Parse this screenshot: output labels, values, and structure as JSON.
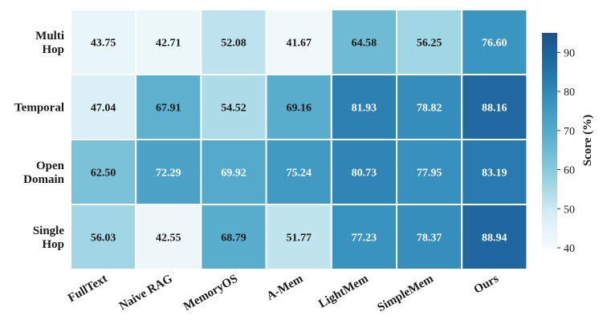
{
  "chart_data": {
    "type": "heatmap",
    "rows": [
      [
        "Multi",
        "Hop"
      ],
      [
        "Temporal"
      ],
      [
        "Open",
        "Domain"
      ],
      [
        "Single",
        "Hop"
      ]
    ],
    "columns": [
      "FullText",
      "Naive RAG",
      "MemoryOS",
      "A-Mem",
      "LightMem",
      "SimpleMem",
      "Ours"
    ],
    "values": [
      [
        43.75,
        42.71,
        52.08,
        41.67,
        64.58,
        56.25,
        76.6
      ],
      [
        47.04,
        67.91,
        54.52,
        69.16,
        81.93,
        78.82,
        88.16
      ],
      [
        62.5,
        72.29,
        69.92,
        75.24,
        80.73,
        77.95,
        83.19
      ],
      [
        56.03,
        42.55,
        68.79,
        51.77,
        77.23,
        78.37,
        88.94
      ]
    ],
    "value_labels": [
      [
        "43.75",
        "42.71",
        "52.08",
        "41.67",
        "64.58",
        "56.25",
        "76.60"
      ],
      [
        "47.04",
        "67.91",
        "54.52",
        "69.16",
        "81.93",
        "78.82",
        "88.16"
      ],
      [
        "62.50",
        "72.29",
        "69.92",
        "75.24",
        "80.73",
        "77.95",
        "83.19"
      ],
      [
        "56.03",
        "42.55",
        "68.79",
        "51.77",
        "77.23",
        "78.37",
        "88.94"
      ]
    ],
    "colorbar": {
      "label": "Score (%)",
      "range": [
        40,
        95
      ],
      "ticks": [
        40,
        50,
        60,
        70,
        80,
        90
      ],
      "colormap": [
        "#f7fbfd",
        "#d2ecf4",
        "#92cfe0",
        "#5fb2cf",
        "#3a95c0",
        "#2271a8",
        "#18538a"
      ]
    }
  }
}
